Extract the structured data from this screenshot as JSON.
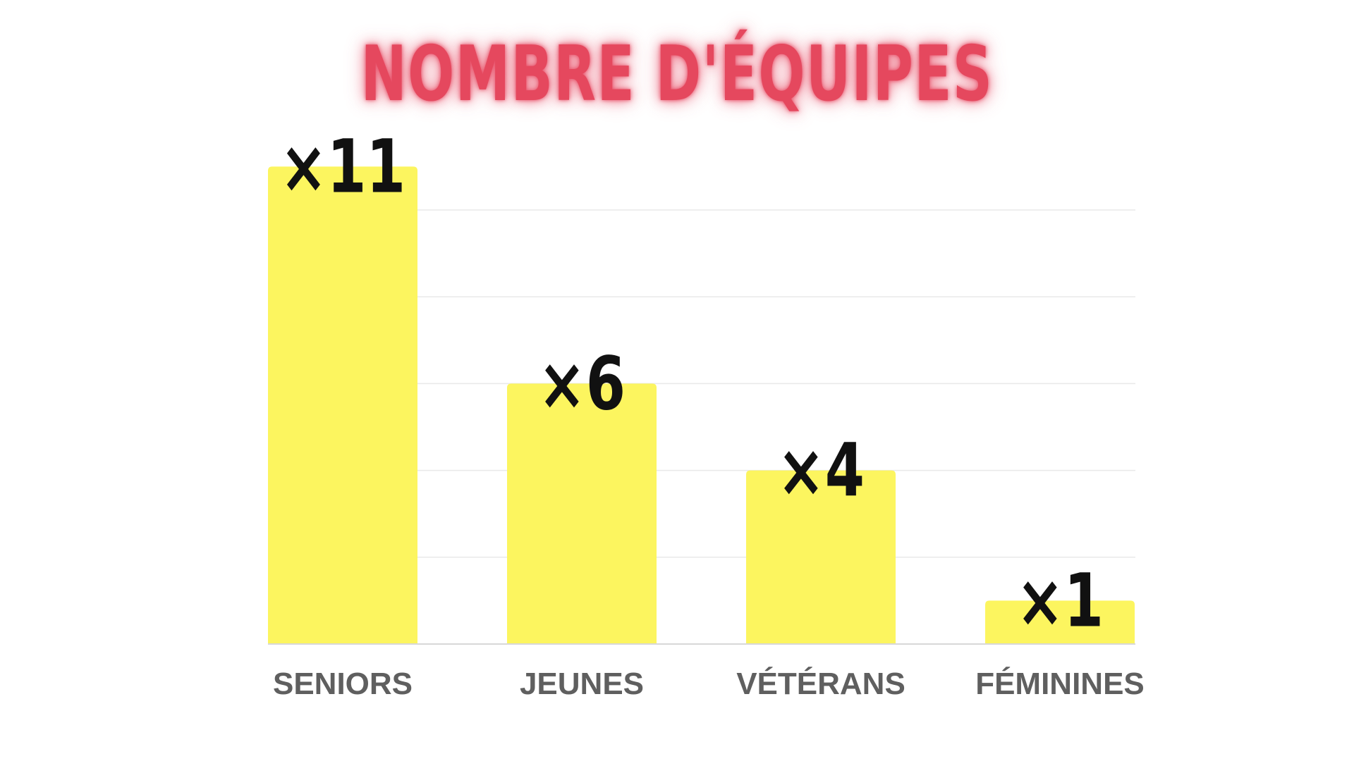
{
  "chart_data": {
    "type": "bar",
    "title": "NOMBRE D'ÉQUIPES",
    "categories": [
      "SENIORS",
      "JEUNES",
      "VÉTÉRANS",
      "FÉMININES"
    ],
    "values": [
      11,
      6,
      4,
      1
    ],
    "data_labels": [
      "×11",
      "×6",
      "×4",
      "×1"
    ],
    "ylim": [
      0,
      12
    ],
    "grid": true,
    "xlabel": "",
    "ylabel": "",
    "colors": {
      "bar": "#fcf55f",
      "title": "#e5485e",
      "category_text": "#5f5f5f",
      "value_text": "#111111",
      "grid": "#e9e9e9",
      "axis": "#d8d8d8"
    }
  }
}
